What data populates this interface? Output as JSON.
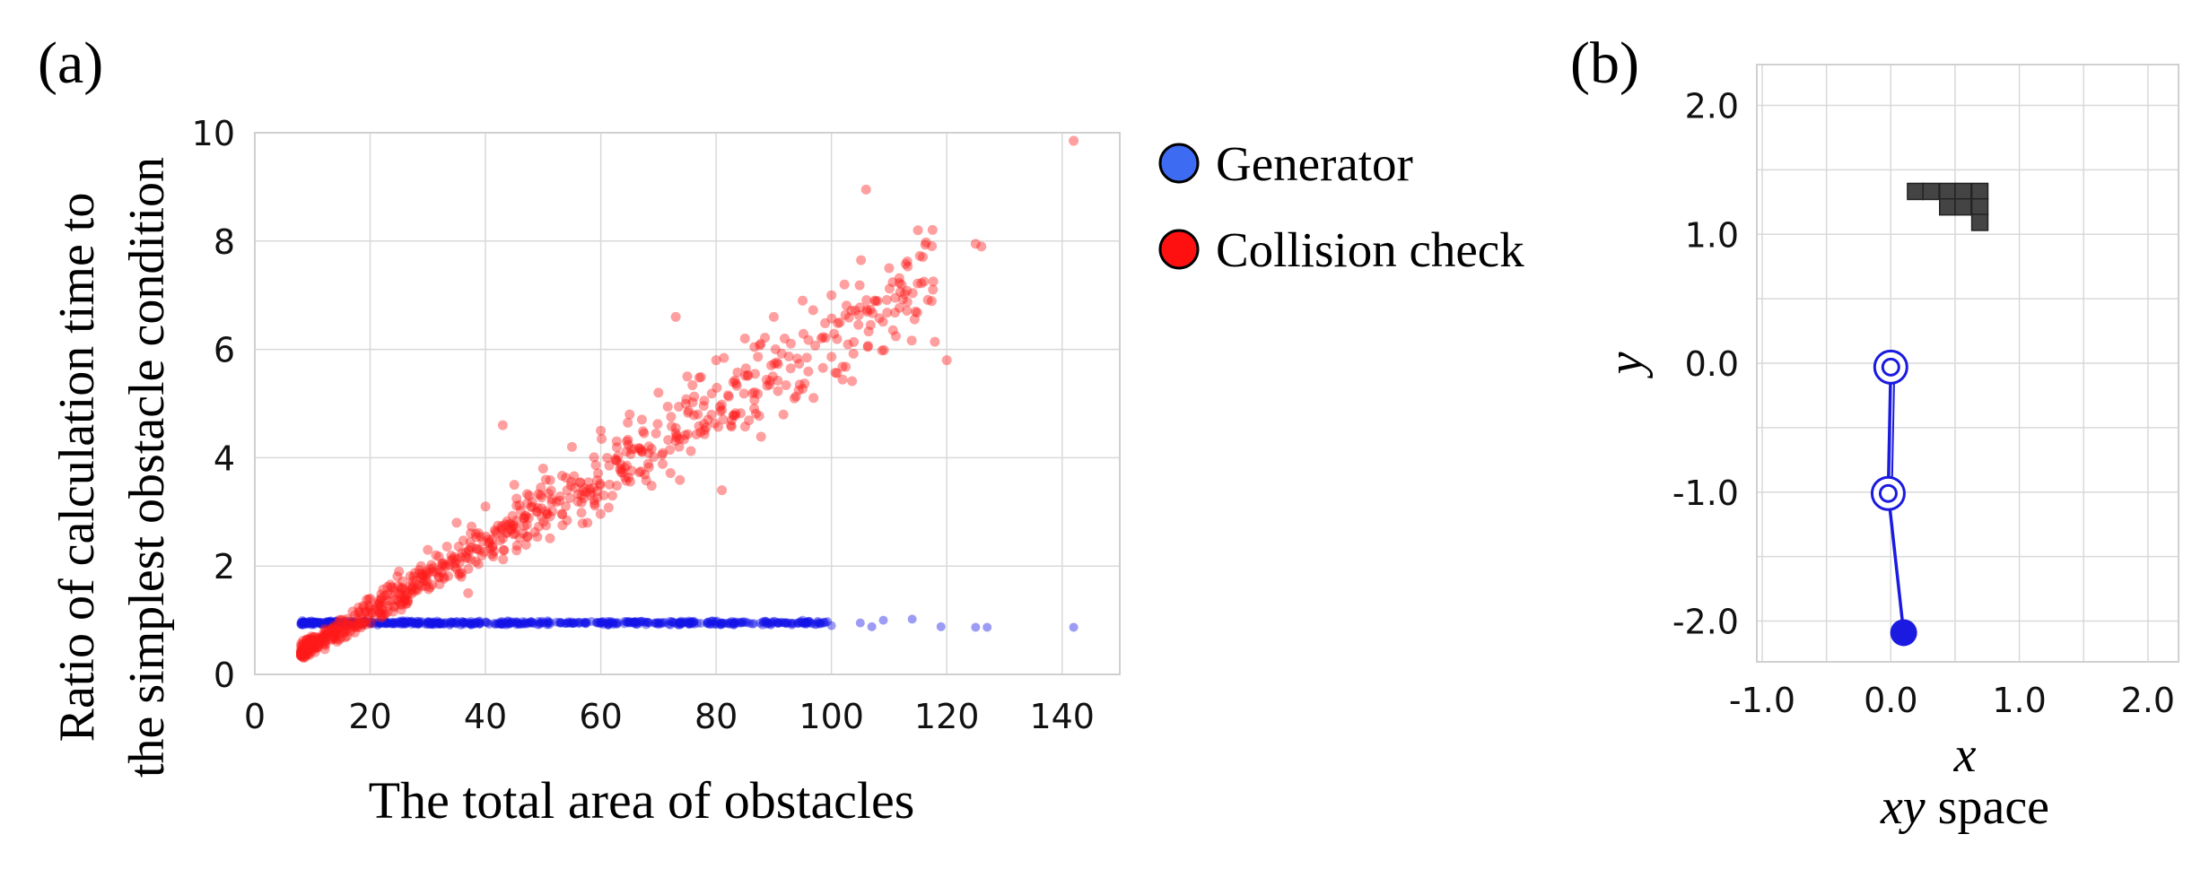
{
  "colors": {
    "generator": "#1414e6",
    "collision": "#ff1a1a",
    "legend_generator": "#3d6cf2",
    "legend_collision": "#ff1010",
    "grid": "#d9d9d9",
    "obstacle": "#444444",
    "robot": "#1a1ae0"
  },
  "chart_data": [
    {
      "panel_label": "(a)",
      "type": "scatter",
      "title": "",
      "xlabel": "The total area of obstacles",
      "ylabel_line1": "Ratio of calculation time to",
      "ylabel_line2": "the simplest obstacle condition",
      "xlim": [
        0,
        150
      ],
      "ylim": [
        0,
        10
      ],
      "xticks": [
        0,
        20,
        40,
        60,
        80,
        100,
        120,
        140
      ],
      "yticks": [
        0,
        2,
        4,
        6,
        8,
        10
      ],
      "grid": true,
      "legend_position": "outside-right",
      "series": [
        {
          "name": "Generator",
          "pattern": "nearly constant ratio ~0.9-1.0 across x 8-142",
          "x_range": [
            8,
            142
          ],
          "y_center": 0.95,
          "points": [
            [
              8,
              0.93
            ],
            [
              10,
              0.97
            ],
            [
              15,
              0.95
            ],
            [
              20,
              0.94
            ],
            [
              30,
              0.97
            ],
            [
              40,
              0.96
            ],
            [
              50,
              0.95
            ],
            [
              60,
              0.95
            ],
            [
              70,
              0.96
            ],
            [
              80,
              0.97
            ],
            [
              90,
              0.98
            ],
            [
              95,
              1.0
            ],
            [
              100,
              0.9
            ],
            [
              105,
              0.95
            ],
            [
              107,
              0.88
            ],
            [
              109,
              1.0
            ],
            [
              114,
              1.02
            ],
            [
              119,
              0.88
            ],
            [
              125,
              0.87
            ],
            [
              127,
              0.87
            ],
            [
              142,
              0.87
            ]
          ]
        },
        {
          "name": "Collision check",
          "pattern": "roughly linear growth from ~0.4 at x=8 to ~8 at x=125, spread increases with x",
          "x_range": [
            8,
            142
          ],
          "points": [
            [
              8,
              0.4
            ],
            [
              10,
              0.6
            ],
            [
              15,
              1.0
            ],
            [
              20,
              1.4
            ],
            [
              25,
              1.9
            ],
            [
              30,
              2.3
            ],
            [
              35,
              2.8
            ],
            [
              40,
              3.1
            ],
            [
              45,
              3.5
            ],
            [
              50,
              3.8
            ],
            [
              55,
              4.2
            ],
            [
              60,
              4.5
            ],
            [
              65,
              4.8
            ],
            [
              70,
              5.2
            ],
            [
              75,
              5.5
            ],
            [
              80,
              5.8
            ],
            [
              85,
              6.2
            ],
            [
              90,
              6.6
            ],
            [
              95,
              6.9
            ],
            [
              100,
              7.0
            ],
            [
              106,
              8.95
            ],
            [
              110,
              7.5
            ],
            [
              115,
              8.2
            ],
            [
              120,
              5.8
            ],
            [
              125,
              7.95
            ],
            [
              126,
              7.9
            ],
            [
              142,
              9.85
            ],
            [
              43,
              4.6
            ],
            [
              73,
              6.6
            ],
            [
              81,
              3.4
            ],
            [
              62,
              3.3
            ],
            [
              37,
              1.5
            ]
          ]
        }
      ]
    },
    {
      "panel_label": "(b)",
      "type": "scatter",
      "title": "",
      "xlabel": "x",
      "ylabel": "y",
      "caption_math": "xy",
      "caption_text": "space",
      "xlim": [
        -1.0,
        2.3
      ],
      "ylim": [
        -2.2,
        2.3
      ],
      "xticks": [
        "-1.0",
        "0.0",
        "1.0",
        "2.0"
      ],
      "yticks": [
        "2.0",
        "1.0",
        "0.0",
        "-1.0",
        "-2.0"
      ],
      "grid": true,
      "obstacle_cells": [
        [
          0.13,
          1.27
        ],
        [
          0.25,
          1.27
        ],
        [
          0.38,
          1.27
        ],
        [
          0.5,
          1.27
        ],
        [
          0.63,
          1.27
        ],
        [
          0.38,
          1.15
        ],
        [
          0.5,
          1.15
        ],
        [
          0.63,
          1.15
        ],
        [
          0.63,
          1.03
        ]
      ],
      "obstacle_cell_size": 0.125,
      "robot_joints": [
        [
          0.0,
          -0.03
        ],
        [
          -0.02,
          -1.01
        ],
        [
          0.1,
          -2.09
        ]
      ],
      "robot_joint_styles": [
        "double-ring",
        "double-ring",
        "filled"
      ]
    }
  ],
  "legend": {
    "generator_label": "Generator",
    "collision_label": "Collision check"
  }
}
